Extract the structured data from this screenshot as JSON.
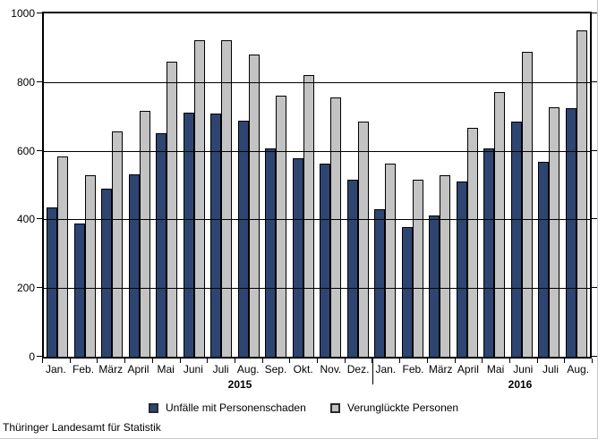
{
  "chart_data": {
    "type": "bar",
    "title": "",
    "xlabel": "",
    "ylabel": "",
    "ylim": [
      0,
      1000
    ],
    "yticks": [
      0,
      200,
      400,
      600,
      800,
      1000
    ],
    "grid": "horizontal",
    "legend_position": "bottom",
    "bar_outline_color": "#000000",
    "categories": [
      "Jan.",
      "Feb.",
      "März",
      "April",
      "Mai",
      "Juni",
      "Juli",
      "Aug.",
      "Sep.",
      "Okt.",
      "Nov.",
      "Dez.",
      "Jan.",
      "Feb.",
      "März",
      "April",
      "Mai",
      "Juni",
      "Juli",
      "Aug."
    ],
    "years": [
      {
        "label": "2015",
        "months": [
          "Jan.",
          "Feb.",
          "März",
          "April",
          "Mai",
          "Juni",
          "Juli",
          "Aug.",
          "Sep.",
          "Okt.",
          "Nov.",
          "Dez."
        ]
      },
      {
        "label": "2016",
        "months": [
          "Jan.",
          "Feb.",
          "März",
          "April",
          "Mai",
          "Juni",
          "Juli",
          "Aug."
        ]
      }
    ],
    "series": [
      {
        "name": "Unfälle mit Personenschaden",
        "color": "#2E4571",
        "values": [
          435,
          388,
          490,
          532,
          650,
          710,
          708,
          687,
          606,
          578,
          562,
          515,
          430,
          377,
          412,
          510,
          606,
          686,
          568,
          724
        ]
      },
      {
        "name": "Verunglückte Personen",
        "color": "#C3C3C3",
        "values": [
          584,
          528,
          656,
          715,
          860,
          922,
          921,
          880,
          760,
          820,
          756,
          686,
          562,
          515,
          528,
          667,
          770,
          889,
          727,
          951
        ]
      }
    ]
  },
  "footer": {
    "source": "Thüringer Landesamt für Statistik"
  }
}
